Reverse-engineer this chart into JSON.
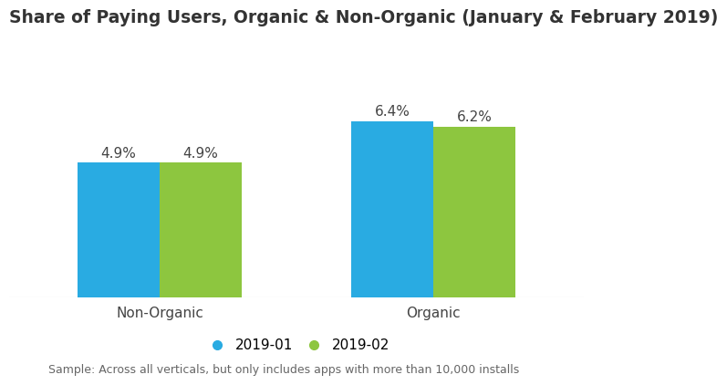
{
  "title": "Share of Paying Users, Organic & Non-Organic (January & February 2019)",
  "categories": [
    "Non-Organic",
    "Organic"
  ],
  "series": [
    {
      "label": "2019-01",
      "values": [
        4.9,
        6.4
      ],
      "color": "#29ABE2"
    },
    {
      "label": "2019-02",
      "values": [
        4.9,
        6.2
      ],
      "color": "#8DC63F"
    }
  ],
  "bar_width": 0.3,
  "ylim": [
    0,
    8.5
  ],
  "footnote": "Sample: Across all verticals, but only includes apps with more than 10,000 installs",
  "title_fontsize": 13.5,
  "tick_fontsize": 11,
  "legend_fontsize": 11,
  "footnote_fontsize": 9,
  "bar_label_fontsize": 11,
  "background_color": "#ffffff",
  "legend_marker_size": 7
}
